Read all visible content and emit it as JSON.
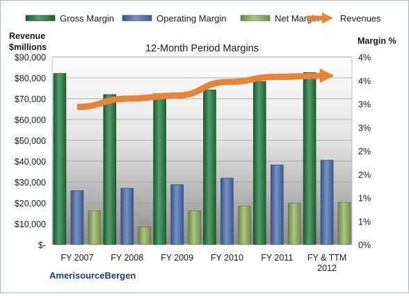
{
  "chart_data": {
    "type": "bar",
    "title": "12-Month Period Margins",
    "company": "AmerisourceBergen",
    "left_axis_title": [
      "Revenue",
      "$millions"
    ],
    "right_axis_title": "Margin %",
    "categories": [
      [
        "FY 2007"
      ],
      [
        "FY 2008"
      ],
      [
        "FY 2009"
      ],
      [
        "FY 2010"
      ],
      [
        "FY 2011"
      ],
      [
        "FY & TTM",
        "2012"
      ]
    ],
    "left_axis": {
      "min": 0,
      "max": 90000,
      "step": 10000,
      "tick_labels": [
        "$-",
        "$10,000",
        "$20,000",
        "$30,000",
        "$40,000",
        "$50,000",
        "$60,000",
        "$70,000",
        "$80,000",
        "$90,000"
      ]
    },
    "right_axis": {
      "min": 0,
      "max": 4,
      "step": 0.5,
      "tick_labels": [
        "0%",
        "1%",
        "1%",
        "2%",
        "2%",
        "3%",
        "3%",
        "4%",
        "4%"
      ]
    },
    "series": [
      {
        "name": "Gross Margin",
        "axis": "right",
        "color": "#1f7a3c",
        "values": [
          3.65,
          3.2,
          3.22,
          3.3,
          3.48,
          3.67
        ]
      },
      {
        "name": "Operating Margin",
        "axis": "right",
        "color": "#4a6fb0",
        "values": [
          1.15,
          1.2,
          1.28,
          1.42,
          1.7,
          1.8
        ]
      },
      {
        "name": "Net Margin",
        "axis": "right",
        "color": "#8fb35a",
        "values": [
          0.72,
          0.38,
          0.72,
          0.82,
          0.88,
          0.9
        ]
      },
      {
        "name": "Revenues",
        "axis": "left",
        "type": "line",
        "color": "#e8843a",
        "values": [
          66000,
          70000,
          71500,
          78000,
          80500,
          81000
        ]
      }
    ],
    "legend_position": "top",
    "grid": true
  }
}
